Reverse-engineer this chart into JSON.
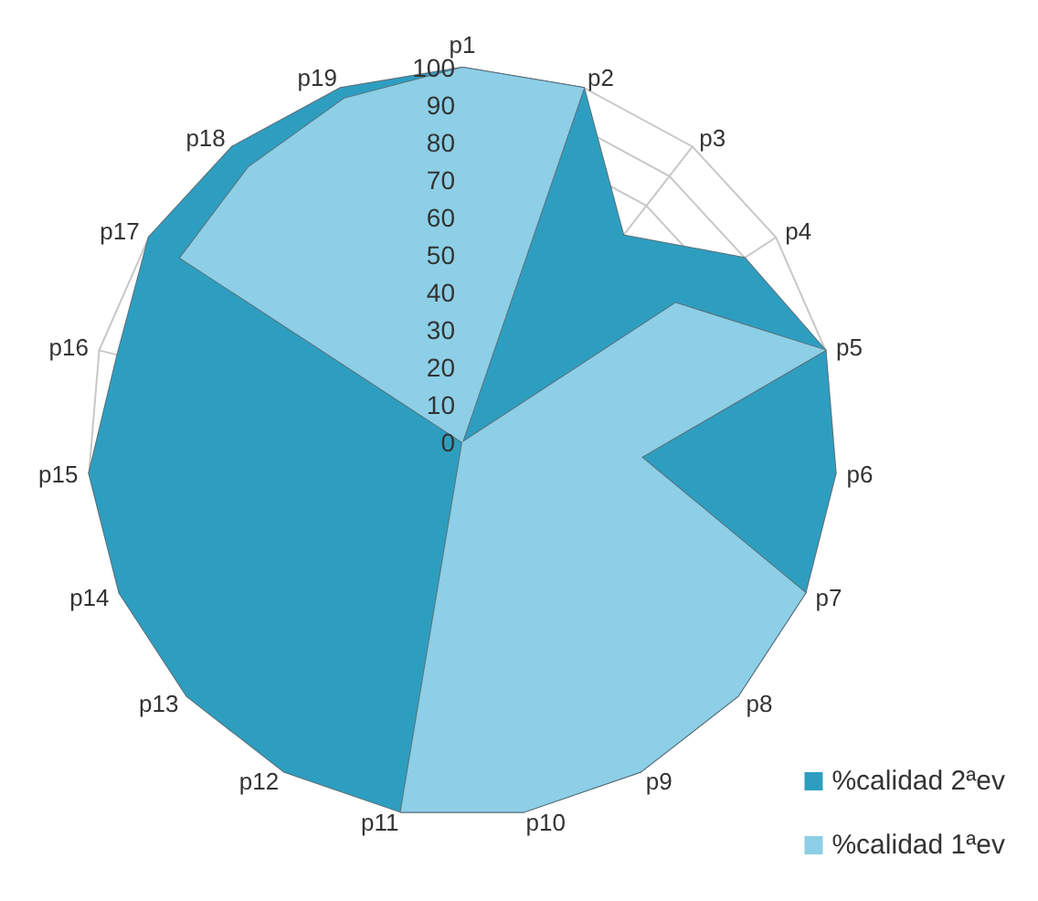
{
  "chart_data": {
    "type": "radar",
    "categories": [
      "p1",
      "p2",
      "p3",
      "p4",
      "p5",
      "p6",
      "p7",
      "p8",
      "p9",
      "p10",
      "p11",
      "p12",
      "p13",
      "p14",
      "p15",
      "p16",
      "p17",
      "p18",
      "p19"
    ],
    "ylim": [
      0,
      100
    ],
    "yticks": [
      0,
      10,
      20,
      30,
      40,
      50,
      60,
      70,
      80,
      90,
      100
    ],
    "legend": "bottom right",
    "series": [
      {
        "name": "%calidad 2ªev",
        "color": "#2e9ec0",
        "values": [
          100,
          100,
          70,
          90,
          100,
          100,
          100,
          100,
          100,
          100,
          100,
          100,
          100,
          100,
          100,
          95,
          100,
          100,
          100
        ]
      },
      {
        "name": "%calidad 1ªev",
        "color": "#8ccfe6",
        "values": [
          100,
          100,
          0,
          68,
          100,
          48,
          100,
          100,
          100,
          100,
          100,
          0,
          0,
          0,
          0,
          0,
          90,
          93,
          97
        ]
      }
    ]
  }
}
